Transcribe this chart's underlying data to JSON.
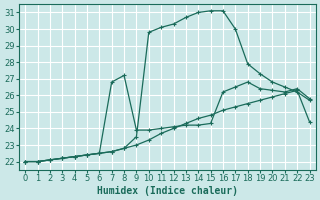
{
  "xlabel": "Humidex (Indice chaleur)",
  "bg_color": "#cce8e8",
  "grid_color": "#ffffff",
  "line_color": "#1a6b5a",
  "xlim": [
    -0.5,
    23.5
  ],
  "ylim": [
    21.5,
    31.5
  ],
  "xticks": [
    0,
    1,
    2,
    3,
    4,
    5,
    6,
    7,
    8,
    9,
    10,
    11,
    12,
    13,
    14,
    15,
    16,
    17,
    18,
    19,
    20,
    21,
    22,
    23
  ],
  "yticks": [
    22,
    23,
    24,
    25,
    26,
    27,
    28,
    29,
    30,
    31
  ],
  "curve_top_x": [
    0,
    1,
    2,
    3,
    4,
    5,
    6,
    7,
    8,
    9,
    10,
    11,
    12,
    13,
    14,
    15,
    16,
    17,
    18,
    19,
    20,
    21,
    22,
    23
  ],
  "curve_top_y": [
    22,
    22,
    22.1,
    22.2,
    22.3,
    22.4,
    22.5,
    22.6,
    22.8,
    23.5,
    29.8,
    30.1,
    30.3,
    30.7,
    31.0,
    31.1,
    31.1,
    30.0,
    27.9,
    27.3,
    26.8,
    26.5,
    26.2,
    25.7
  ],
  "curve_mid_x": [
    0,
    1,
    2,
    3,
    4,
    5,
    6,
    7,
    8,
    9,
    10,
    11,
    12,
    13,
    14,
    15,
    16,
    17,
    18,
    19,
    20,
    21,
    22,
    23
  ],
  "curve_mid_y": [
    22,
    22,
    22.1,
    22.2,
    22.3,
    22.4,
    22.5,
    26.8,
    27.2,
    23.9,
    23.9,
    24.0,
    24.1,
    24.2,
    24.2,
    24.3,
    26.2,
    26.5,
    26.8,
    26.4,
    26.3,
    26.2,
    26.4,
    25.8
  ],
  "curve_bot_x": [
    0,
    1,
    2,
    3,
    4,
    5,
    6,
    7,
    8,
    9,
    10,
    11,
    12,
    13,
    14,
    15,
    16,
    17,
    18,
    19,
    20,
    21,
    22,
    23
  ],
  "curve_bot_y": [
    22,
    22,
    22.1,
    22.2,
    22.3,
    22.4,
    22.5,
    22.6,
    22.8,
    23.0,
    23.3,
    23.7,
    24.0,
    24.3,
    24.6,
    24.8,
    25.1,
    25.3,
    25.5,
    25.7,
    25.9,
    26.1,
    26.3,
    24.4
  ]
}
